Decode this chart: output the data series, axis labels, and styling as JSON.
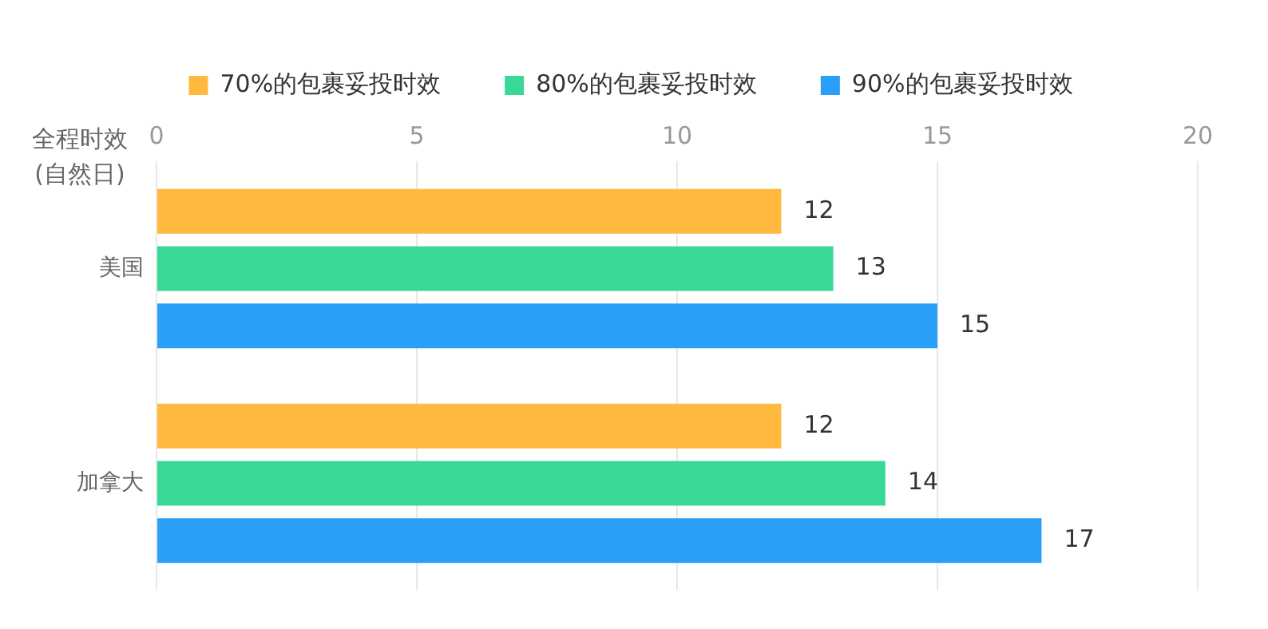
{
  "chart_data": {
    "type": "bar",
    "orientation": "horizontal",
    "xlabel": "全程时效\n(自然日)",
    "categories": [
      "美国",
      "加拿大"
    ],
    "series": [
      {
        "name": "70%的包裹妥投时效",
        "color": "#ffb93f",
        "values": [
          12,
          12
        ]
      },
      {
        "name": "80%的包裹妥投时效",
        "color": "#39d995",
        "values": [
          13,
          14
        ]
      },
      {
        "name": "90%的包裹妥投时效",
        "color": "#2a9ff8",
        "values": [
          15,
          17
        ]
      }
    ],
    "xlim": [
      0,
      20
    ],
    "xticks": [
      0,
      5,
      10,
      15,
      20
    ],
    "grid": "x",
    "legend": "top",
    "data_labels": true
  }
}
